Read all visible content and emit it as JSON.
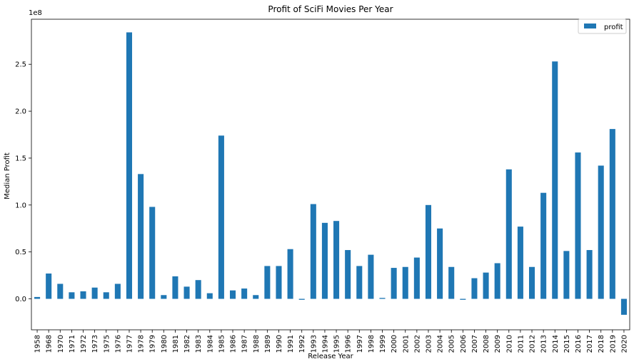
{
  "chart_data": {
    "type": "bar",
    "title": "Profit of SciFi Movies Per Year",
    "xlabel": "Release Year",
    "ylabel": "Median Profit",
    "y_offset_label": "1e8",
    "ylim": [
      -0.33,
      2.98
    ],
    "yticks": [
      0.0,
      0.5,
      1.0,
      1.5,
      2.0,
      2.5
    ],
    "ytick_labels": [
      "0.0",
      "0.5",
      "1.0",
      "1.5",
      "2.0",
      "2.5"
    ],
    "grid": false,
    "legend_position": "top-right",
    "bar_color": "#1f77b4",
    "categories": [
      "1958",
      "1968",
      "1970",
      "1971",
      "1972",
      "1973",
      "1975",
      "1976",
      "1977",
      "1978",
      "1979",
      "1980",
      "1981",
      "1982",
      "1983",
      "1984",
      "1985",
      "1986",
      "1987",
      "1988",
      "1989",
      "1990",
      "1991",
      "1992",
      "1993",
      "1994",
      "1995",
      "1996",
      "1997",
      "1998",
      "1999",
      "2000",
      "2001",
      "2002",
      "2003",
      "2004",
      "2005",
      "2006",
      "2007",
      "2008",
      "2009",
      "2010",
      "2011",
      "2012",
      "2013",
      "2014",
      "2015",
      "2016",
      "2017",
      "2018",
      "2019",
      "2020"
    ],
    "series": [
      {
        "name": "profit",
        "values": [
          0.02,
          0.27,
          0.16,
          0.07,
          0.08,
          0.12,
          0.07,
          0.16,
          2.84,
          1.33,
          0.98,
          0.04,
          0.24,
          0.13,
          0.2,
          0.06,
          1.74,
          0.09,
          0.11,
          0.04,
          0.35,
          0.35,
          0.53,
          -0.01,
          1.01,
          0.81,
          0.83,
          0.52,
          0.35,
          0.47,
          0.01,
          0.33,
          0.34,
          0.44,
          1.0,
          0.75,
          0.34,
          -0.01,
          0.22,
          0.28,
          0.38,
          1.38,
          0.77,
          0.34,
          1.13,
          2.53,
          0.51,
          1.56,
          0.52,
          1.42,
          1.81,
          -0.17
        ]
      }
    ]
  }
}
